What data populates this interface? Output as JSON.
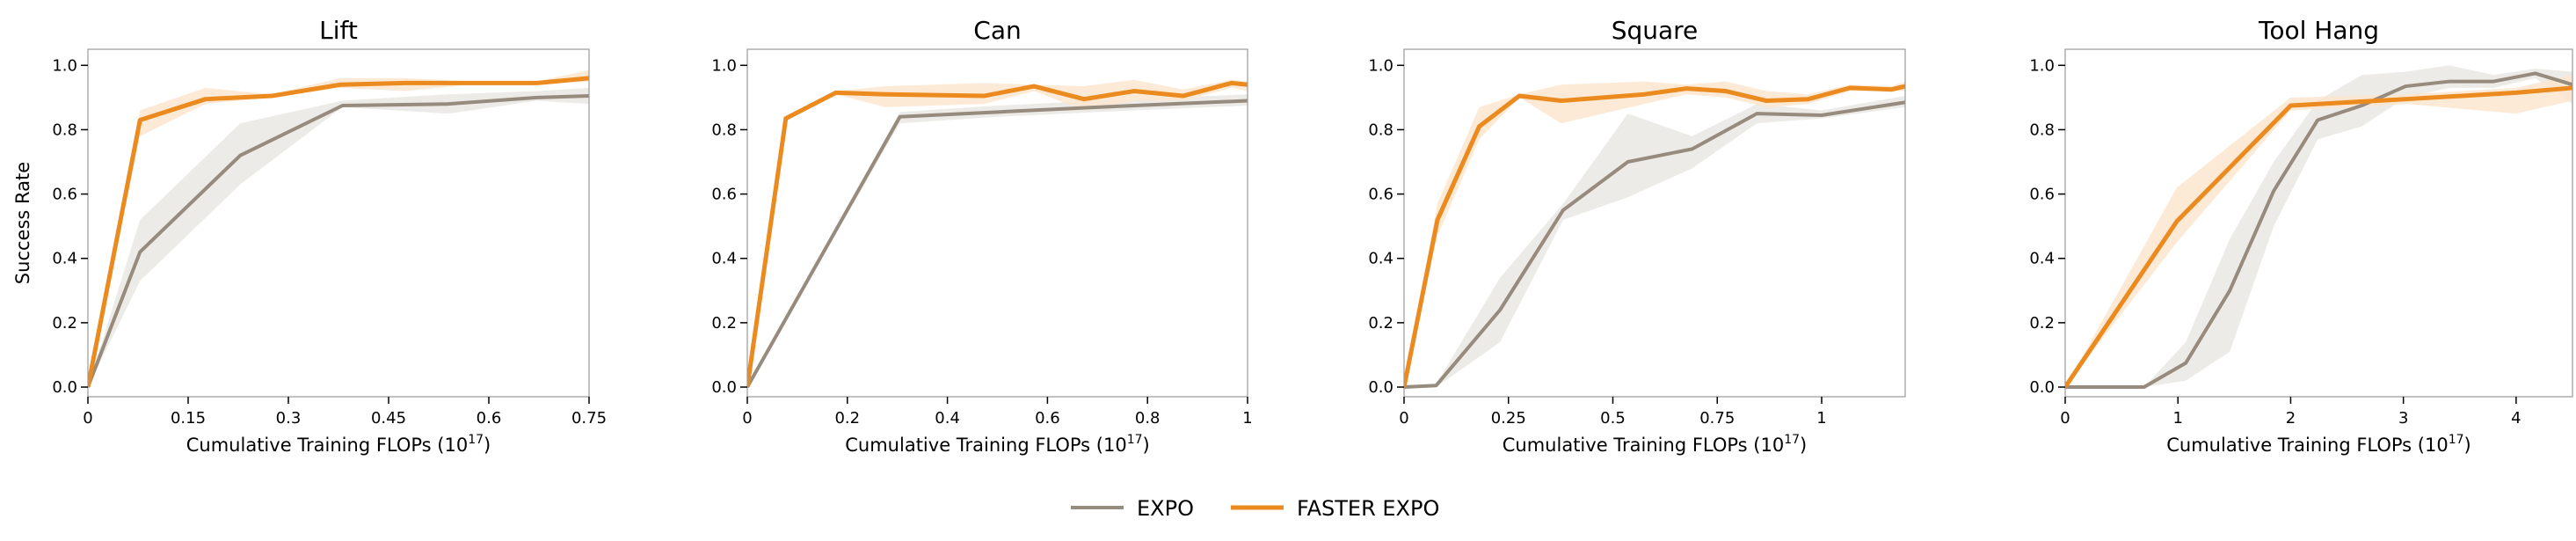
{
  "chart_data": [
    {
      "type": "line",
      "title": "Lift",
      "xlabel": "Cumulative Training FLOPs (10^17)",
      "ylabel": "Success Rate",
      "xlim": [
        0,
        0.75
      ],
      "ylim": [
        -0.03,
        1.05
      ],
      "xticks": [
        0,
        0.15,
        0.3,
        0.45,
        0.6,
        0.75
      ],
      "xtick_labels": [
        "0",
        "0.15",
        "0.3",
        "0.45",
        "0.6",
        "0.75"
      ],
      "yticks": [
        0,
        0.2,
        0.4,
        0.6,
        0.8,
        1.0
      ],
      "ytick_labels": [
        "0.0",
        "0.2",
        "0.4",
        "0.6",
        "0.8",
        "1.0"
      ],
      "series": [
        {
          "name": "EXPO",
          "x": [
            0,
            0.078,
            0.228,
            0.381,
            0.54,
            0.672,
            0.75
          ],
          "y": [
            0,
            0.42,
            0.72,
            0.875,
            0.88,
            0.9,
            0.905
          ],
          "lo": [
            0,
            0.33,
            0.63,
            0.87,
            0.85,
            0.89,
            0.88
          ],
          "hi": [
            0,
            0.52,
            0.82,
            0.89,
            0.91,
            0.92,
            0.93
          ]
        },
        {
          "name": "FASTER EXPO",
          "x": [
            0,
            0.078,
            0.176,
            0.275,
            0.378,
            0.475,
            0.572,
            0.672,
            0.75
          ],
          "y": [
            0,
            0.83,
            0.895,
            0.905,
            0.94,
            0.945,
            0.945,
            0.945,
            0.96
          ],
          "lo": [
            0,
            0.78,
            0.88,
            0.9,
            0.93,
            0.92,
            0.94,
            0.94,
            0.95
          ],
          "hi": [
            0,
            0.86,
            0.93,
            0.91,
            0.96,
            0.96,
            0.95,
            0.95,
            0.985
          ]
        }
      ]
    },
    {
      "type": "line",
      "title": "Can",
      "xlabel": "Cumulative Training FLOPs (10^17)",
      "ylabel": "",
      "xlim": [
        0,
        1
      ],
      "ylim": [
        -0.03,
        1.05
      ],
      "xticks": [
        0,
        0.2,
        0.4,
        0.6,
        0.8,
        1
      ],
      "xtick_labels": [
        "0",
        "0.2",
        "0.4",
        "0.6",
        "0.8",
        "1"
      ],
      "yticks": [
        0,
        0.2,
        0.4,
        0.6,
        0.8,
        1.0
      ],
      "ytick_labels": [
        "0.0",
        "0.2",
        "0.4",
        "0.6",
        "0.8",
        "1.0"
      ],
      "series": [
        {
          "name": "EXPO",
          "x": [
            0,
            0.305,
            0.5,
            0.7,
            0.85,
            1
          ],
          "y": [
            0,
            0.84,
            0.855,
            0.87,
            0.88,
            0.89
          ],
          "lo": [
            0,
            0.82,
            0.84,
            0.855,
            0.865,
            0.875
          ],
          "hi": [
            0,
            0.855,
            0.875,
            0.89,
            0.9,
            0.91
          ]
        },
        {
          "name": "FASTER EXPO",
          "x": [
            0,
            0.077,
            0.177,
            0.277,
            0.473,
            0.573,
            0.673,
            0.773,
            0.871,
            0.968,
            1
          ],
          "y": [
            0,
            0.835,
            0.915,
            0.91,
            0.905,
            0.935,
            0.895,
            0.92,
            0.905,
            0.945,
            0.94
          ],
          "lo": [
            0,
            0.83,
            0.91,
            0.87,
            0.88,
            0.92,
            0.86,
            0.89,
            0.89,
            0.93,
            0.92
          ],
          "hi": [
            0,
            0.84,
            0.92,
            0.935,
            0.945,
            0.94,
            0.935,
            0.955,
            0.925,
            0.955,
            0.95
          ]
        }
      ]
    },
    {
      "type": "line",
      "title": "Square",
      "xlabel": "Cumulative Training FLOPs (10^17)",
      "ylabel": "",
      "xlim": [
        0,
        1.2
      ],
      "ylim": [
        -0.03,
        1.05
      ],
      "xticks": [
        0,
        0.25,
        0.5,
        0.75,
        1
      ],
      "xtick_labels": [
        "0",
        "0.25",
        "0.5",
        "0.75",
        "1"
      ],
      "yticks": [
        0,
        0.2,
        0.4,
        0.6,
        0.8,
        1.0
      ],
      "ytick_labels": [
        "0.0",
        "0.2",
        "0.4",
        "0.6",
        "0.8",
        "1.0"
      ],
      "series": [
        {
          "name": "EXPO",
          "x": [
            0,
            0.077,
            0.23,
            0.381,
            0.536,
            0.69,
            0.845,
            1.0,
            1.2
          ],
          "y": [
            0,
            0.005,
            0.24,
            0.55,
            0.7,
            0.74,
            0.85,
            0.845,
            0.885
          ],
          "lo": [
            0,
            0,
            0.14,
            0.52,
            0.59,
            0.68,
            0.82,
            0.835,
            0.87
          ],
          "hi": [
            0,
            0.01,
            0.34,
            0.57,
            0.85,
            0.78,
            0.88,
            0.86,
            0.905
          ]
        },
        {
          "name": "FASTER EXPO",
          "x": [
            0,
            0.08,
            0.18,
            0.276,
            0.376,
            0.576,
            0.676,
            0.77,
            0.868,
            0.968,
            1.068,
            1.168,
            1.2
          ],
          "y": [
            0,
            0.52,
            0.81,
            0.905,
            0.89,
            0.91,
            0.928,
            0.92,
            0.89,
            0.895,
            0.93,
            0.925,
            0.935
          ],
          "lo": [
            0,
            0.47,
            0.77,
            0.9,
            0.82,
            0.88,
            0.91,
            0.9,
            0.87,
            0.88,
            0.92,
            0.92,
            0.92
          ],
          "hi": [
            0,
            0.57,
            0.87,
            0.91,
            0.94,
            0.95,
            0.94,
            0.95,
            0.92,
            0.91,
            0.94,
            0.935,
            0.95
          ]
        }
      ]
    },
    {
      "type": "line",
      "title": "Tool Hang",
      "xlabel": "Cumulative Training FLOPs (10^17)",
      "ylabel": "",
      "xlim": [
        0,
        4.5
      ],
      "ylim": [
        -0.03,
        1.05
      ],
      "xticks": [
        0,
        1,
        2,
        3,
        4
      ],
      "xtick_labels": [
        "0",
        "1",
        "2",
        "3",
        "4"
      ],
      "yticks": [
        0,
        0.2,
        0.4,
        0.6,
        0.8,
        1.0
      ],
      "ytick_labels": [
        "0.0",
        "0.2",
        "0.4",
        "0.6",
        "0.8",
        "1.0"
      ],
      "series": [
        {
          "name": "EXPO",
          "x": [
            0,
            0.7,
            1.07,
            1.46,
            1.85,
            2.24,
            2.63,
            3.02,
            3.41,
            3.8,
            4.17,
            4.5
          ],
          "y": [
            0,
            0,
            0.075,
            0.3,
            0.61,
            0.83,
            0.875,
            0.935,
            0.95,
            0.95,
            0.975,
            0.94
          ],
          "lo": [
            0,
            0,
            0.02,
            0.11,
            0.5,
            0.77,
            0.81,
            0.9,
            0.93,
            0.93,
            0.96,
            0.88
          ],
          "hi": [
            0,
            0,
            0.14,
            0.46,
            0.7,
            0.89,
            0.97,
            0.98,
            1.0,
            0.97,
            0.99,
            0.98
          ]
        },
        {
          "name": "FASTER EXPO",
          "x": [
            0,
            0.99,
            2.0,
            3.02,
            4.0,
            4.5
          ],
          "y": [
            0,
            0.515,
            0.875,
            0.895,
            0.915,
            0.93
          ],
          "lo": [
            0,
            0.45,
            0.86,
            0.88,
            0.85,
            0.89
          ],
          "hi": [
            0,
            0.62,
            0.9,
            0.91,
            0.93,
            0.97
          ]
        }
      ]
    }
  ],
  "xlabel_parts": {
    "base": "Cumulative Training FLOPs (10",
    "exp": "17",
    "close": ")"
  },
  "legend": {
    "placement": "bottom-center",
    "items": [
      {
        "label": "EXPO"
      },
      {
        "label": "FASTER EXPO"
      }
    ]
  },
  "colors": {
    "EXPO": "#978b7d",
    "FASTER EXPO": "#ea8a1f",
    "EXPO_band": "#e9e7e3",
    "FASTER EXPO_band": "#fbe6cf",
    "spine": "#999999"
  }
}
